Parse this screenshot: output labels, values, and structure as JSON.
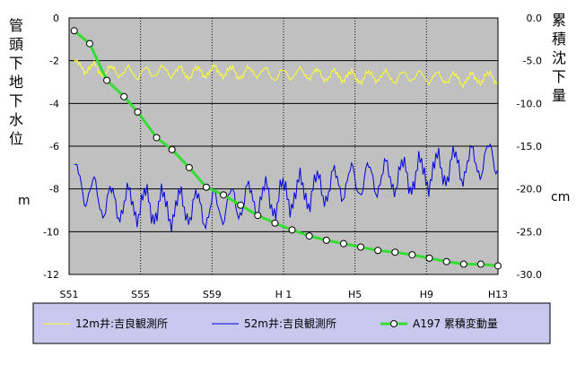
{
  "chart_data": {
    "type": "line",
    "x_ticks": [
      "S51",
      "S55",
      "S59",
      "H 1",
      "H5",
      "H9",
      "H13"
    ],
    "left_axis": {
      "label": "管頭下地下水位",
      "unit": "m",
      "ylim": [
        -12,
        0
      ],
      "ticks": [
        "0",
        "-2",
        "-4",
        "-6",
        "-8",
        "-10",
        "-12"
      ]
    },
    "right_axis": {
      "label": "累積沈下量",
      "unit": "cm",
      "ylim": [
        -30,
        0
      ],
      "ticks": [
        "0.0",
        "-5.0",
        "-10.0",
        "-15.0",
        "-20.0",
        "-25.0",
        "-30.0"
      ]
    },
    "grid": "vertical dotted lines at year ticks; horizontal lines at left-axis ticks",
    "legend_position": "bottom",
    "series": [
      {
        "name": "12m井:吉良観測所",
        "axis": "left",
        "color": "#ffff33",
        "x_range": [
          1976.3,
          2001
        ],
        "base_values": [
          -2.2,
          -2.3,
          -2.5,
          -2.5,
          -2.6,
          -2.5,
          -2.5,
          -2.6,
          -2.5,
          -2.5,
          -2.6,
          -2.5,
          -2.7,
          -2.6,
          -2.6,
          -2.7,
          -2.7,
          -2.8,
          -2.7,
          -2.8,
          -2.7,
          -2.8,
          -2.8,
          -2.9,
          -2.8,
          -2.8
        ],
        "seasonal_amplitude": 0.25
      },
      {
        "name": "52m井:吉良観測所",
        "axis": "left",
        "color": "#0000dd",
        "x_range": [
          1976.3,
          2001
        ],
        "base_values": [
          -7.3,
          -8.0,
          -8.6,
          -8.7,
          -8.7,
          -8.8,
          -8.9,
          -8.8,
          -9.0,
          -8.8,
          -8.6,
          -8.4,
          -8.5,
          -8.2,
          -8.1,
          -7.9,
          -7.7,
          -7.6,
          -7.5,
          -7.4,
          -7.4,
          -7.2,
          -7.0,
          -6.9,
          -6.7,
          -6.5
        ],
        "seasonal_amplitude": 0.75
      },
      {
        "name": "A197 累積変動量",
        "axis": "right",
        "color": "#33dd33",
        "marker": "circle",
        "points": [
          [
            1976.3,
            -1.5
          ],
          [
            1977.2,
            -3.0
          ],
          [
            1978.2,
            -7.3
          ],
          [
            1979.2,
            -9.2
          ],
          [
            1980.0,
            -11.0
          ],
          [
            1981.1,
            -14.0
          ],
          [
            1982.0,
            -15.4
          ],
          [
            1983.0,
            -17.5
          ],
          [
            1984.0,
            -19.8
          ],
          [
            1985.0,
            -20.7
          ],
          [
            1986.0,
            -21.9
          ],
          [
            1987.0,
            -23.1
          ],
          [
            1988.0,
            -24.0
          ],
          [
            1989.0,
            -24.8
          ],
          [
            1990.0,
            -25.5
          ],
          [
            1991.0,
            -26.0
          ],
          [
            1992.0,
            -26.4
          ],
          [
            1993.0,
            -26.8
          ],
          [
            1994.0,
            -27.2
          ],
          [
            1995.0,
            -27.4
          ],
          [
            1996.0,
            -27.7
          ],
          [
            1997.0,
            -28.1
          ],
          [
            1998.0,
            -28.5
          ],
          [
            1999.0,
            -28.8
          ],
          [
            2000.0,
            -28.8
          ],
          [
            2001.0,
            -29.0
          ]
        ]
      }
    ]
  }
}
